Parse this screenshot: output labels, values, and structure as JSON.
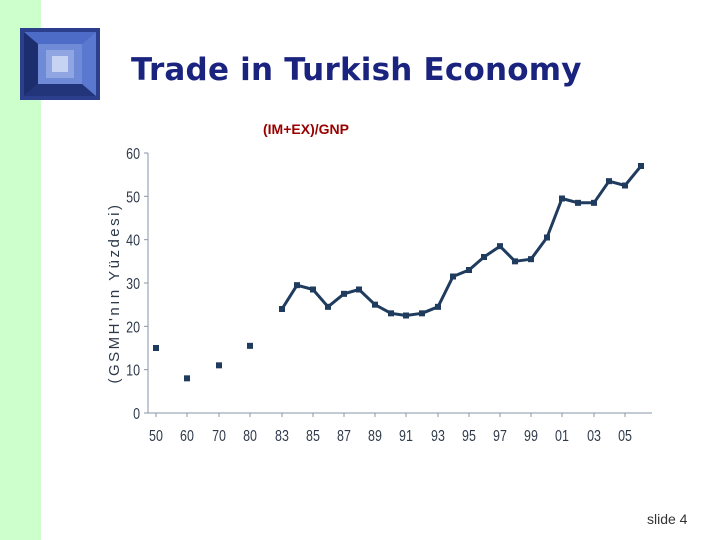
{
  "slide": {
    "title": "Trade in Turkish Economy",
    "subtitle": "(IM+EX)/GNP",
    "slide_number": "slide 4"
  },
  "colors": {
    "left_band": "#ccffcc",
    "title": "#1a237e",
    "subtitle": "#990000",
    "series": "#1f3b5e",
    "axis_text": "#2e3a4a"
  },
  "chart_data": {
    "type": "line",
    "title": "(IM+EX)/GNP",
    "xlabel": "",
    "ylabel": "(GSMH'nın Yüzdesi)",
    "ylim": [
      0,
      60
    ],
    "yticks": [
      "0",
      "10",
      "20",
      "30",
      "40",
      "50",
      "60"
    ],
    "xtick_labels": [
      "50",
      "60",
      "70",
      "80",
      "83",
      "85",
      "87",
      "89",
      "91",
      "93",
      "95",
      "97",
      "99",
      "01",
      "03",
      "05"
    ],
    "grid": false,
    "series": [
      {
        "values": [
          {
            "year": 1950,
            "value": 15
          },
          {
            "year": 1960,
            "value": 8
          },
          {
            "year": 1970,
            "value": 11
          },
          {
            "year": 1980,
            "value": 15.5
          },
          {
            "year": 1983,
            "value": 24
          },
          {
            "year": 1984,
            "value": 29.5
          },
          {
            "year": 1985,
            "value": 28.5
          },
          {
            "year": 1986,
            "value": 24.5
          },
          {
            "year": 1987,
            "value": 27.5
          },
          {
            "year": 1988,
            "value": 28.5
          },
          {
            "year": 1989,
            "value": 25
          },
          {
            "year": 1990,
            "value": 23
          },
          {
            "year": 1991,
            "value": 22.5
          },
          {
            "year": 1992,
            "value": 23
          },
          {
            "year": 1993,
            "value": 24.5
          },
          {
            "year": 1994,
            "value": 31.5
          },
          {
            "year": 1995,
            "value": 33
          },
          {
            "year": 1996,
            "value": 36
          },
          {
            "year": 1997,
            "value": 38.5
          },
          {
            "year": 1998,
            "value": 35
          },
          {
            "year": 1999,
            "value": 35.5
          },
          {
            "year": 2000,
            "value": 40.5
          },
          {
            "year": 2001,
            "value": 49.5
          },
          {
            "year": 2002,
            "value": 48.5
          },
          {
            "year": 2003,
            "value": 48.5
          },
          {
            "year": 2004,
            "value": 53.5
          },
          {
            "year": 2005,
            "value": 52.5
          },
          {
            "year": 2006,
            "value": 57
          }
        ]
      }
    ]
  }
}
